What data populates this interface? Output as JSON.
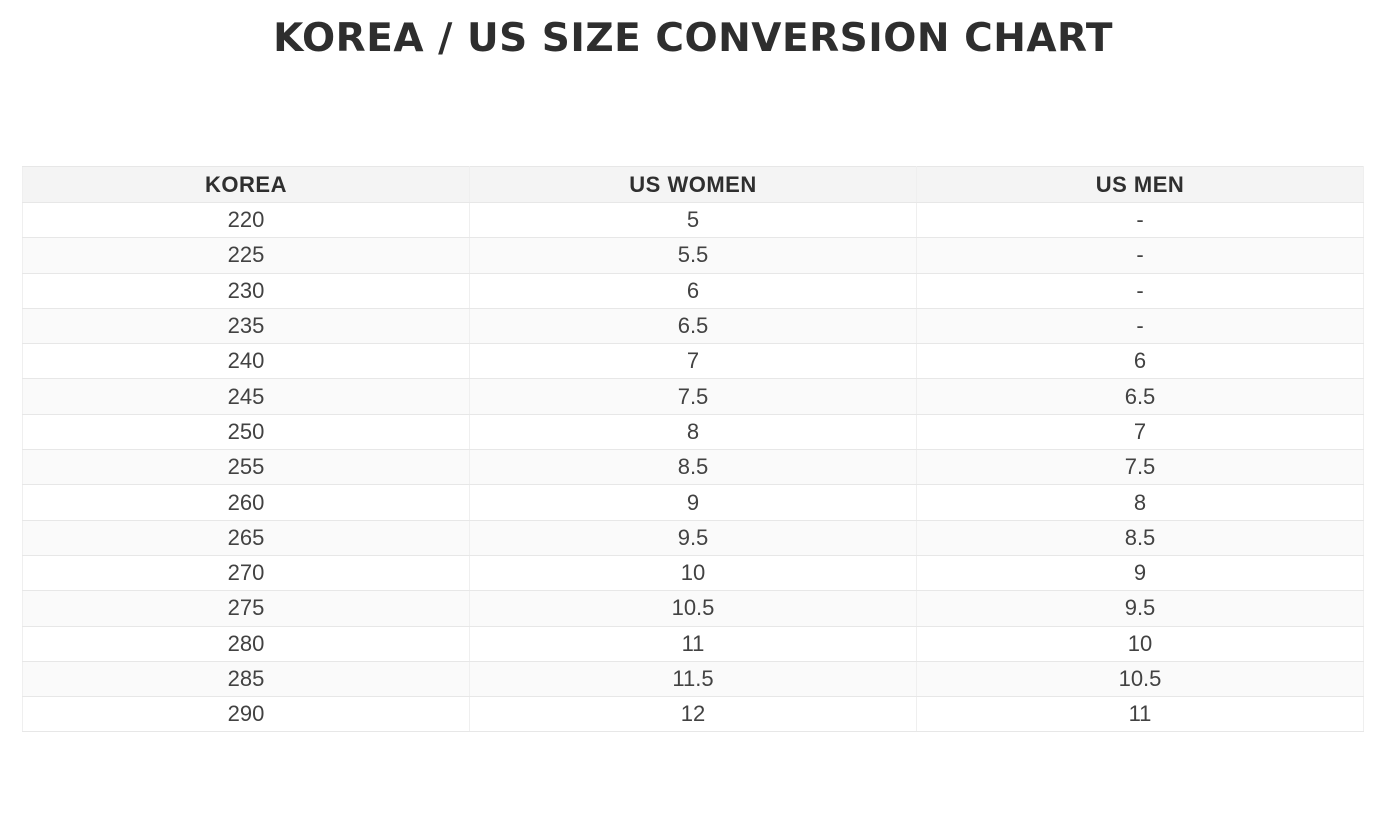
{
  "title": "KOREA / US SIZE CONVERSION CHART",
  "table": {
    "columns": [
      "KOREA",
      "US WOMEN",
      "US MEN"
    ],
    "rows": [
      [
        "220",
        "5",
        "-"
      ],
      [
        "225",
        "5.5",
        "-"
      ],
      [
        "230",
        "6",
        "-"
      ],
      [
        "235",
        "6.5",
        "-"
      ],
      [
        "240",
        "7",
        "6"
      ],
      [
        "245",
        "7.5",
        "6.5"
      ],
      [
        "250",
        "8",
        "7"
      ],
      [
        "255",
        "8.5",
        "7.5"
      ],
      [
        "260",
        "9",
        "8"
      ],
      [
        "265",
        "9.5",
        "8.5"
      ],
      [
        "270",
        "10",
        "9"
      ],
      [
        "275",
        "10.5",
        "9.5"
      ],
      [
        "280",
        "11",
        "10"
      ],
      [
        "285",
        "11.5",
        "10.5"
      ],
      [
        "290",
        "12",
        "11"
      ]
    ]
  },
  "colors": {
    "title_text": "#2e2e2e",
    "header_bg": "#f4f4f4",
    "alt_row_bg": "#fafafa",
    "border": "#e7e7e7",
    "cell_text": "#424242"
  },
  "chart_data": {
    "type": "table",
    "title": "KOREA / US SIZE CONVERSION CHART",
    "columns": [
      "KOREA",
      "US WOMEN",
      "US MEN"
    ],
    "rows": [
      [
        "220",
        "5",
        "-"
      ],
      [
        "225",
        "5.5",
        "-"
      ],
      [
        "230",
        "6",
        "-"
      ],
      [
        "235",
        "6.5",
        "-"
      ],
      [
        "240",
        "7",
        "6"
      ],
      [
        "245",
        "7.5",
        "6.5"
      ],
      [
        "250",
        "8",
        "7"
      ],
      [
        "255",
        "8.5",
        "7.5"
      ],
      [
        "260",
        "9",
        "8"
      ],
      [
        "265",
        "9.5",
        "8.5"
      ],
      [
        "270",
        "10",
        "9"
      ],
      [
        "275",
        "10.5",
        "9.5"
      ],
      [
        "280",
        "11",
        "10"
      ],
      [
        "285",
        "11.5",
        "10.5"
      ],
      [
        "290",
        "12",
        "11"
      ]
    ]
  }
}
